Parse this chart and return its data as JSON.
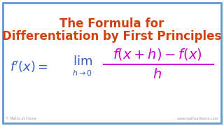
{
  "background_color": "#ffffff",
  "border_color": "#5b9bd5",
  "title_line1": "The Formula for",
  "title_line2": "Differentiation by First Principles",
  "title_color": "#d04010",
  "lhs_color": "#3060c0",
  "lim_color": "#3060c0",
  "fraction_color": "#cc00cc",
  "watermark_left": "© Maths at Home",
  "watermark_right": "www.mathsathome.com",
  "watermark_color": "#999999"
}
